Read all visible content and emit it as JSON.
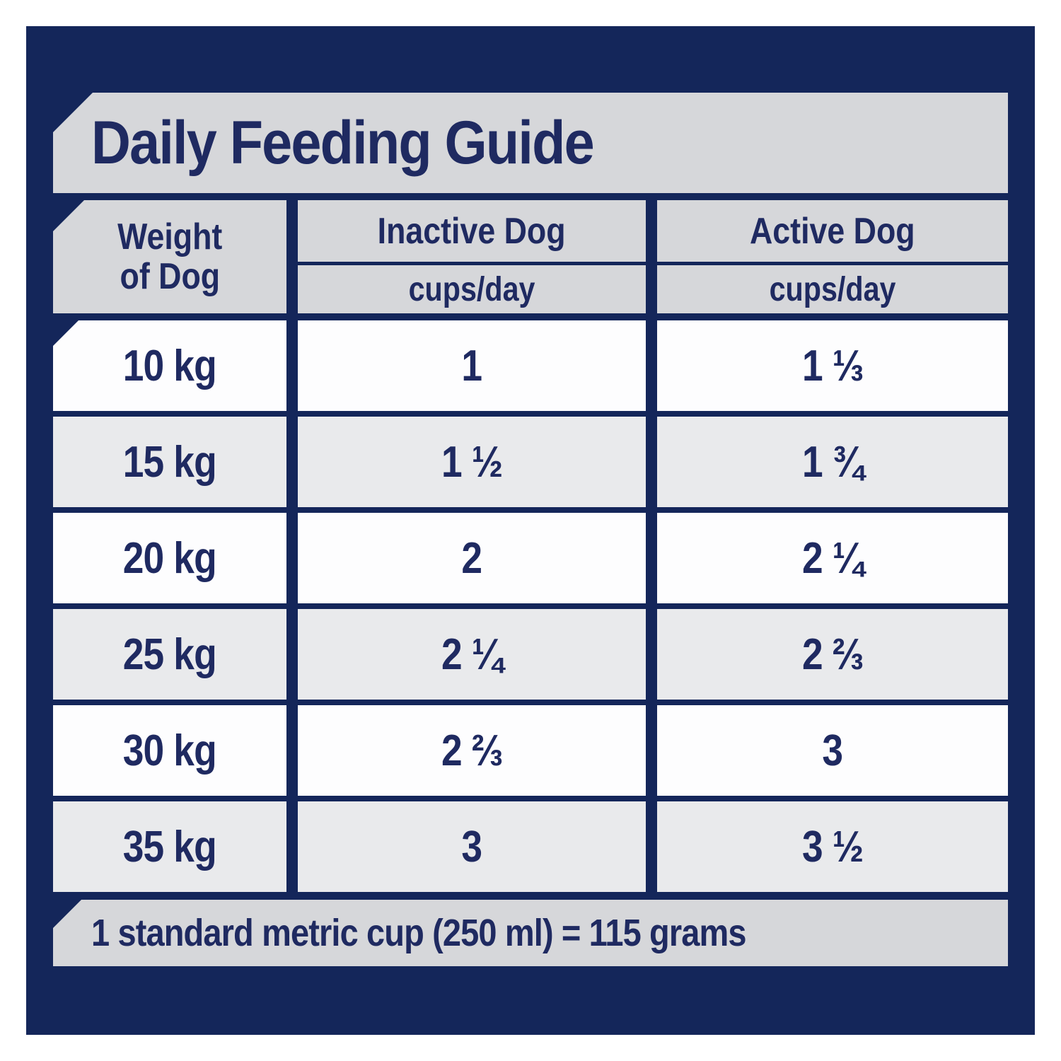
{
  "panel": {
    "title": "Daily Feeding Guide",
    "footer_note": "1 standard metric cup (250 ml) = 115 grams"
  },
  "table": {
    "weight_header": {
      "line1": "Weight",
      "line2": "of Dog"
    },
    "columns": [
      {
        "label": "Inactive Dog",
        "sublabel": "cups/day"
      },
      {
        "label": "Active Dog",
        "sublabel": "cups/day"
      }
    ],
    "rows": [
      {
        "weight": "10 kg",
        "inactive": "1",
        "active": "1 ⅓"
      },
      {
        "weight": "15 kg",
        "inactive": "1 ½",
        "active": "1 ¾"
      },
      {
        "weight": "20 kg",
        "inactive": "2",
        "active": "2 ¼"
      },
      {
        "weight": "25 kg",
        "inactive": "2 ¼",
        "active": "2 ⅔"
      },
      {
        "weight": "30 kg",
        "inactive": "2 ⅔",
        "active": "3"
      },
      {
        "weight": "35 kg",
        "inactive": "3",
        "active": "3 ½"
      }
    ]
  },
  "colors": {
    "panel_navy": "#14265a",
    "text_navy": "#1f2a61",
    "band_gray": "#d6d7da",
    "alt_row_gray": "#e9eaec",
    "row_white": "#fdfdfe",
    "page_white": "#ffffff"
  },
  "chart_data": {
    "type": "table",
    "title": "Daily Feeding Guide",
    "columns": [
      "Weight of Dog",
      "Inactive Dog cups/day",
      "Active Dog cups/day"
    ],
    "rows": [
      [
        "10 kg",
        "1",
        "1 ⅓"
      ],
      [
        "15 kg",
        "1 ½",
        "1 ¾"
      ],
      [
        "20 kg",
        "2",
        "2 ¼"
      ],
      [
        "25 kg",
        "2 ¼",
        "2 ⅔"
      ],
      [
        "30 kg",
        "2 ⅔",
        "3"
      ],
      [
        "35 kg",
        "3",
        "3 ½"
      ]
    ],
    "categories": [
      "10 kg",
      "15 kg",
      "20 kg",
      "25 kg",
      "30 kg",
      "35 kg"
    ],
    "series": [
      {
        "name": "Inactive Dog (cups/day)",
        "values": [
          1,
          1.5,
          2,
          2.25,
          2.67,
          3
        ]
      },
      {
        "name": "Active Dog (cups/day)",
        "values": [
          1.33,
          1.75,
          2.25,
          2.67,
          3,
          3.5
        ]
      }
    ],
    "footnote": "1 standard metric cup (250 ml) = 115 grams",
    "legend_position": "none",
    "grid": true
  }
}
